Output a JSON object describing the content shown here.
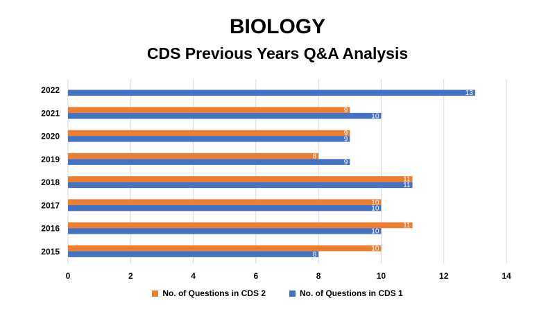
{
  "page": {
    "title": "BIOLOGY",
    "subtitle": "CDS Previous Years Q&A Analysis"
  },
  "chart_data": {
    "type": "bar",
    "orientation": "horizontal",
    "categories": [
      "2022",
      "2021",
      "2020",
      "2019",
      "2018",
      "2017",
      "2016",
      "2015"
    ],
    "series": [
      {
        "name": "No. of Questions in CDS 2",
        "color": "#ED7D31",
        "values": [
          null,
          9,
          9,
          8,
          11,
          10,
          11,
          10
        ]
      },
      {
        "name": "No. of Questions in CDS 1",
        "color": "#4472C4",
        "values": [
          13,
          10,
          9,
          9,
          11,
          10,
          10,
          8
        ]
      }
    ],
    "xlim": [
      0,
      14
    ],
    "xticks": [
      0,
      2,
      4,
      6,
      8,
      10,
      12,
      14
    ],
    "grid": true,
    "legend_position": "bottom"
  }
}
